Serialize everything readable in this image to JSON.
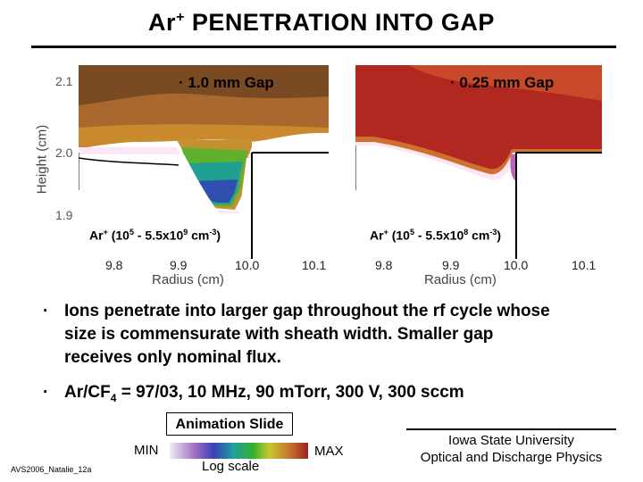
{
  "title": {
    "main": "Ar",
    "sup": "+",
    "rest": " PENETRATION INTO GAP"
  },
  "panels": [
    {
      "label": "1.0 mm Gap",
      "species": "Ar",
      "species_sup": "+",
      "range_open": " (10",
      "exp1": "5",
      "mid": " - 5.5x10",
      "exp2": "9",
      "unit": " cm",
      "unit_exp": "-3",
      "close": ")"
    },
    {
      "label": "0.25 mm Gap",
      "species": "Ar",
      "species_sup": "+",
      "range_open": " (10",
      "exp1": "5",
      "mid": " - 5.5x10",
      "exp2": "8",
      "unit": " cm",
      "unit_exp": "-3",
      "close": ")"
    }
  ],
  "y_axis": {
    "label": "Height (cm)",
    "ticks": [
      "2.1",
      "2.0",
      "1.9"
    ]
  },
  "x_axis": {
    "label": "Radius (cm)",
    "ticks": [
      "9.8",
      "9.9",
      "10.0",
      "10.1"
    ]
  },
  "bullets": [
    {
      "symbol": "·",
      "lines": [
        "Ions penetrate into larger gap throughout the rf cycle whose",
        "size is commensurate with sheath width. Smaller gap",
        "receives only nominal flux."
      ]
    },
    {
      "symbol": "·",
      "text_a": "Ar/CF",
      "sub": "4",
      "text_b": " = 97/03, 10 MHz, 90 m",
      "text_c": "Torr, 300 V, 300 sccm"
    }
  ],
  "animation_label": "Animation Slide",
  "colorbar": {
    "min": "MIN",
    "max": "MAX",
    "scale": "Log scale",
    "colors": [
      "#e8e8f0",
      "#a070c0",
      "#4040c0",
      "#20a0a0",
      "#30c030",
      "#d0d030",
      "#d08030",
      "#c03030"
    ]
  },
  "affiliation": {
    "line1": "Iowa State University",
    "line2": "Optical and Discharge Physics"
  },
  "doc_id": "AVS2006_Natalie_12a",
  "colors": {
    "plasma_top": "#8b5a2b",
    "plasma_red": "#c0302a",
    "sheath": "#fbe6f6"
  }
}
